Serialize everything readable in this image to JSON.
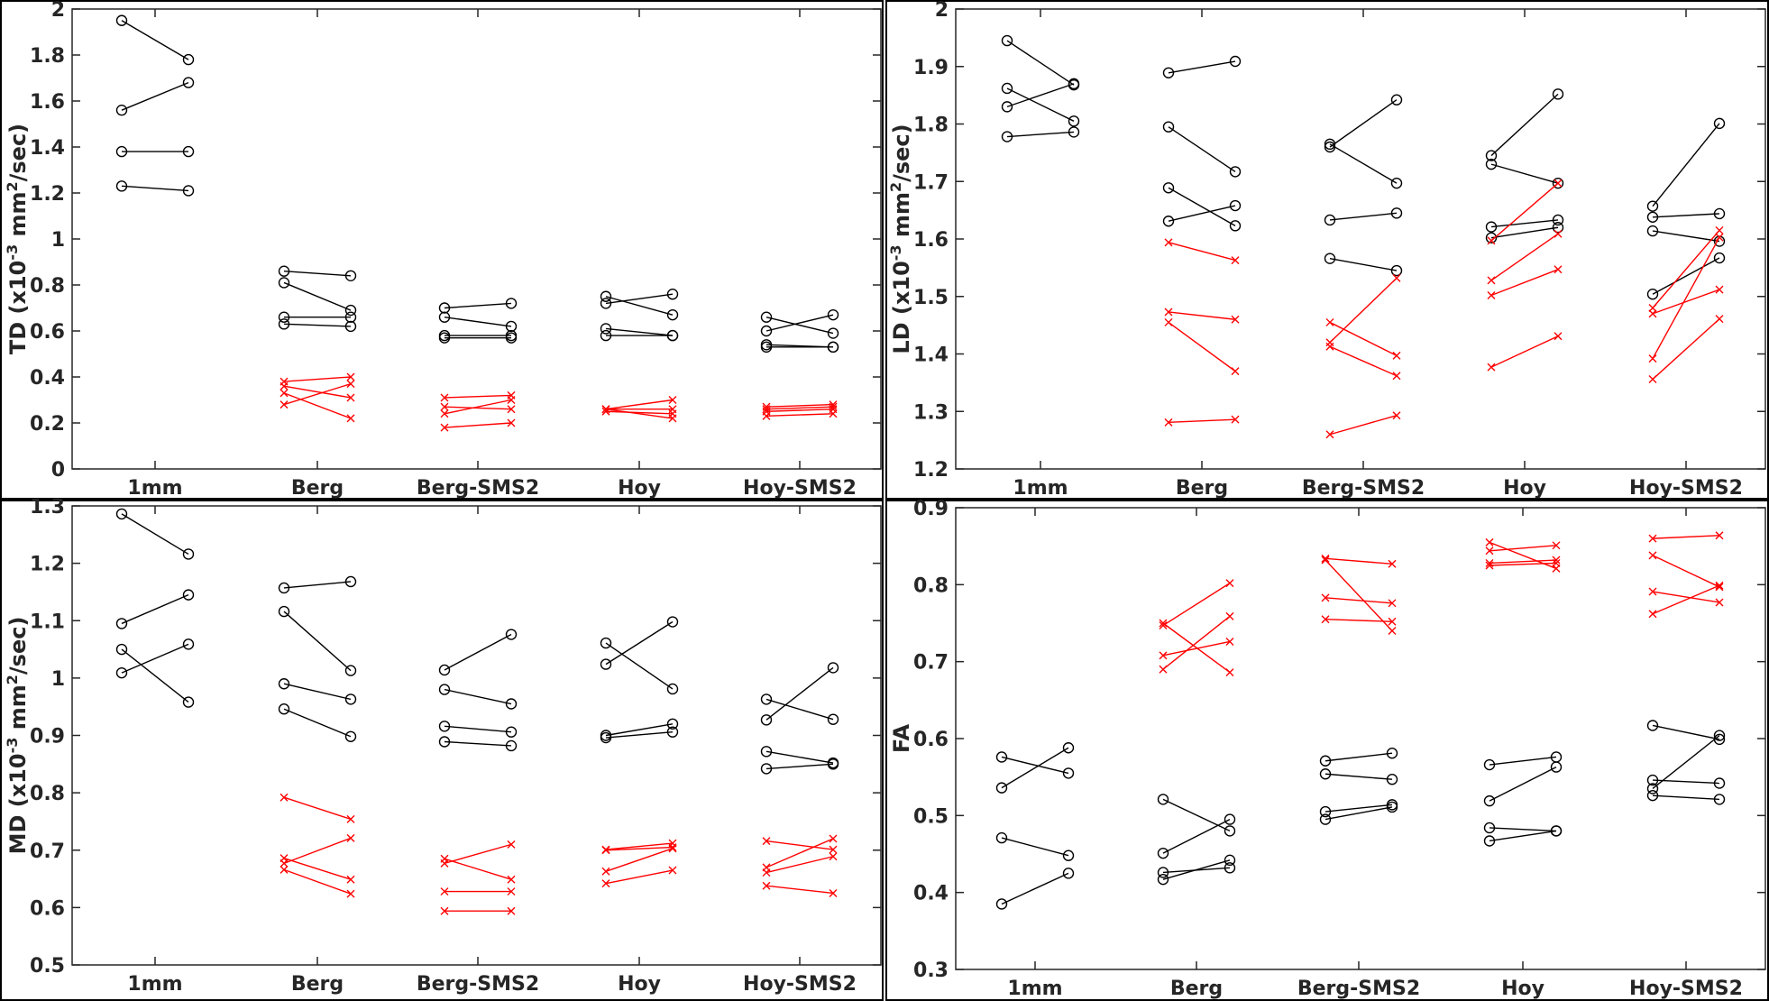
{
  "chart_data": [
    {
      "type": "line",
      "panel": "top-left",
      "ylabel": "TD (x10-3 mm2/sec)",
      "ylabel_parts": {
        "base": "TD (x10",
        "exp1": "-3",
        "mid": " mm",
        "exp2": "2",
        "end": "/sec)"
      },
      "ylim": [
        0,
        2
      ],
      "yticks": [
        "0",
        "0.2",
        "0.4",
        "0.6",
        "0.8",
        "1",
        "1.2",
        "1.4",
        "1.6",
        "1.8",
        "2"
      ],
      "categories": [
        "1mm",
        "Berg",
        "Berg-SMS2",
        "Hoy",
        "Hoy-SMS2"
      ],
      "grid": false,
      "series": [
        {
          "marker": "circle",
          "color": "#000000",
          "segments": [
            [
              [
                1.95,
                1.78
              ],
              [
                1.56,
                1.68
              ],
              [
                1.38,
                1.38
              ],
              [
                1.23,
                1.21
              ]
            ],
            [
              [
                0.86,
                0.84
              ],
              [
                0.81,
                0.69
              ],
              [
                0.66,
                0.66
              ],
              [
                0.63,
                0.62
              ]
            ],
            [
              [
                0.7,
                0.72
              ],
              [
                0.66,
                0.62
              ],
              [
                0.58,
                0.58
              ],
              [
                0.57,
                0.57
              ]
            ],
            [
              [
                0.75,
                0.67
              ],
              [
                0.72,
                0.76
              ],
              [
                0.61,
                0.58
              ],
              [
                0.58,
                0.58
              ]
            ],
            [
              [
                0.66,
                0.59
              ],
              [
                0.6,
                0.67
              ],
              [
                0.54,
                0.53
              ],
              [
                0.53,
                0.53
              ]
            ]
          ]
        },
        {
          "marker": "x",
          "color": "#ff0000",
          "segments": [
            [],
            [
              [
                0.38,
                0.4
              ],
              [
                0.36,
                0.31
              ],
              [
                0.33,
                0.22
              ],
              [
                0.28,
                0.37
              ]
            ],
            [
              [
                0.31,
                0.32
              ],
              [
                0.27,
                0.26
              ],
              [
                0.24,
                0.3
              ],
              [
                0.18,
                0.2
              ]
            ],
            [
              [
                0.26,
                0.3
              ],
              [
                0.26,
                0.26
              ],
              [
                0.26,
                0.22
              ],
              [
                0.25,
                0.24
              ]
            ],
            [
              [
                0.27,
                0.28
              ],
              [
                0.26,
                0.27
              ],
              [
                0.25,
                0.26
              ],
              [
                0.23,
                0.24
              ]
            ]
          ]
        }
      ]
    },
    {
      "type": "line",
      "panel": "top-right",
      "ylabel": "LD (x10-3 mm2/sec)",
      "ylabel_parts": {
        "base": "LD (x10",
        "exp1": "-3",
        "mid": " mm",
        "exp2": "2",
        "end": "/sec)"
      },
      "ylim": [
        1.2,
        2
      ],
      "yticks": [
        "1.2",
        "1.3",
        "1.4",
        "1.5",
        "1.6",
        "1.7",
        "1.8",
        "1.9",
        "2"
      ],
      "categories": [
        "1mm",
        "Berg",
        "Berg-SMS2",
        "Hoy",
        "Hoy-SMS2"
      ],
      "grid": false,
      "series": [
        {
          "marker": "circle",
          "color": "#000000",
          "segments": [
            [
              [
                1.945,
                1.868
              ],
              [
                1.862,
                1.805
              ],
              [
                1.83,
                1.87
              ],
              [
                1.778,
                1.786
              ]
            ],
            [
              [
                1.889,
                1.909
              ],
              [
                1.795,
                1.717
              ],
              [
                1.689,
                1.623
              ],
              [
                1.631,
                1.658
              ]
            ],
            [
              [
                1.765,
                1.697
              ],
              [
                1.76,
                1.842
              ],
              [
                1.633,
                1.645
              ],
              [
                1.566,
                1.545
              ]
            ],
            [
              [
                1.745,
                1.852
              ],
              [
                1.73,
                1.697
              ],
              [
                1.621,
                1.633
              ],
              [
                1.602,
                1.62
              ]
            ],
            [
              [
                1.657,
                1.801
              ],
              [
                1.638,
                1.644
              ],
              [
                1.614,
                1.596
              ],
              [
                1.504,
                1.567
              ]
            ]
          ]
        },
        {
          "marker": "x",
          "color": "#ff0000",
          "segments": [
            [],
            [
              [
                1.594,
                1.563
              ],
              [
                1.473,
                1.46
              ],
              [
                1.455,
                1.37
              ],
              [
                1.281,
                1.286
              ]
            ],
            [
              [
                1.455,
                1.397
              ],
              [
                1.42,
                1.532
              ],
              [
                1.413,
                1.362
              ],
              [
                1.26,
                1.293
              ]
            ],
            [
              [
                1.597,
                1.697
              ],
              [
                1.528,
                1.609
              ],
              [
                1.502,
                1.547
              ],
              [
                1.377,
                1.431
              ]
            ],
            [
              [
                1.48,
                1.615
              ],
              [
                1.47,
                1.512
              ],
              [
                1.392,
                1.603
              ],
              [
                1.356,
                1.461
              ]
            ]
          ]
        }
      ]
    },
    {
      "type": "line",
      "panel": "bottom-left",
      "ylabel": "MD (x10-3 mm2/sec)",
      "ylabel_parts": {
        "base": "MD (x10",
        "exp1": "-3",
        "mid": " mm",
        "exp2": "2",
        "end": "/sec)"
      },
      "ylim": [
        0.5,
        1.3
      ],
      "yticks": [
        "0.5",
        "0.6",
        "0.7",
        "0.8",
        "0.9",
        "1",
        "1.1",
        "1.2",
        "1.3"
      ],
      "categories": [
        "1mm",
        "Berg",
        "Berg-SMS2",
        "Hoy",
        "Hoy-SMS2"
      ],
      "grid": false,
      "series": [
        {
          "marker": "circle",
          "color": "#000000",
          "segments": [
            [
              [
                1.286,
                1.216
              ],
              [
                1.095,
                1.145
              ],
              [
                1.05,
                0.958
              ],
              [
                1.009,
                1.059
              ]
            ],
            [
              [
                1.157,
                1.168
              ],
              [
                1.116,
                1.013
              ],
              [
                0.99,
                0.963
              ],
              [
                0.946,
                0.898
              ]
            ],
            [
              [
                1.014,
                1.076
              ],
              [
                0.98,
                0.955
              ],
              [
                0.916,
                0.906
              ],
              [
                0.889,
                0.882
              ]
            ],
            [
              [
                1.061,
                0.981
              ],
              [
                1.024,
                1.098
              ],
              [
                0.9,
                0.92
              ],
              [
                0.896,
                0.906
              ]
            ],
            [
              [
                0.963,
                0.928
              ],
              [
                0.927,
                1.018
              ],
              [
                0.872,
                0.852
              ],
              [
                0.842,
                0.85
              ]
            ]
          ]
        },
        {
          "marker": "x",
          "color": "#ff0000",
          "segments": [
            [],
            [
              [
                0.792,
                0.754
              ],
              [
                0.686,
                0.649
              ],
              [
                0.677,
                0.721
              ],
              [
                0.666,
                0.624
              ]
            ],
            [
              [
                0.685,
                0.649
              ],
              [
                0.677,
                0.71
              ],
              [
                0.628,
                0.628
              ],
              [
                0.594,
                0.594
              ]
            ],
            [
              [
                0.701,
                0.712
              ],
              [
                0.7,
                0.705
              ],
              [
                0.663,
                0.703
              ],
              [
                0.642,
                0.665
              ]
            ],
            [
              [
                0.716,
                0.701
              ],
              [
                0.67,
                0.72
              ],
              [
                0.661,
                0.689
              ],
              [
                0.638,
                0.625
              ]
            ]
          ]
        }
      ]
    },
    {
      "type": "line",
      "panel": "bottom-right",
      "ylabel": "FA",
      "ylim": [
        0.3,
        0.9
      ],
      "yticks": [
        "0.3",
        "0.4",
        "0.5",
        "0.6",
        "0.7",
        "0.8",
        "0.9"
      ],
      "categories": [
        "1mm",
        "Berg",
        "Berg-SMS2",
        "Hoy",
        "Hoy-SMS2"
      ],
      "grid": false,
      "series": [
        {
          "marker": "circle",
          "color": "#000000",
          "segments": [
            [
              [
                0.576,
                0.555
              ],
              [
                0.536,
                0.588
              ],
              [
                0.471,
                0.448
              ],
              [
                0.385,
                0.425
              ]
            ],
            [
              [
                0.521,
                0.48
              ],
              [
                0.451,
                0.495
              ],
              [
                0.426,
                0.432
              ],
              [
                0.417,
                0.442
              ]
            ],
            [
              [
                0.571,
                0.581
              ],
              [
                0.554,
                0.547
              ],
              [
                0.505,
                0.514
              ],
              [
                0.495,
                0.511
              ]
            ],
            [
              [
                0.566,
                0.576
              ],
              [
                0.519,
                0.563
              ],
              [
                0.484,
                0.48
              ],
              [
                0.467,
                0.48
              ]
            ],
            [
              [
                0.617,
                0.599
              ],
              [
                0.546,
                0.542
              ],
              [
                0.535,
                0.604
              ],
              [
                0.526,
                0.521
              ]
            ]
          ]
        },
        {
          "marker": "x",
          "color": "#ff0000",
          "segments": [
            [],
            [
              [
                0.75,
                0.686
              ],
              [
                0.747,
                0.802
              ],
              [
                0.708,
                0.726
              ],
              [
                0.69,
                0.759
              ]
            ],
            [
              [
                0.834,
                0.827
              ],
              [
                0.832,
                0.74
              ],
              [
                0.783,
                0.776
              ],
              [
                0.755,
                0.752
              ]
            ],
            [
              [
                0.855,
                0.821
              ],
              [
                0.844,
                0.851
              ],
              [
                0.828,
                0.832
              ],
              [
                0.825,
                0.828
              ]
            ],
            [
              [
                0.86,
                0.864
              ],
              [
                0.838,
                0.797
              ],
              [
                0.791,
                0.777
              ],
              [
                0.762,
                0.799
              ]
            ]
          ]
        }
      ]
    }
  ]
}
